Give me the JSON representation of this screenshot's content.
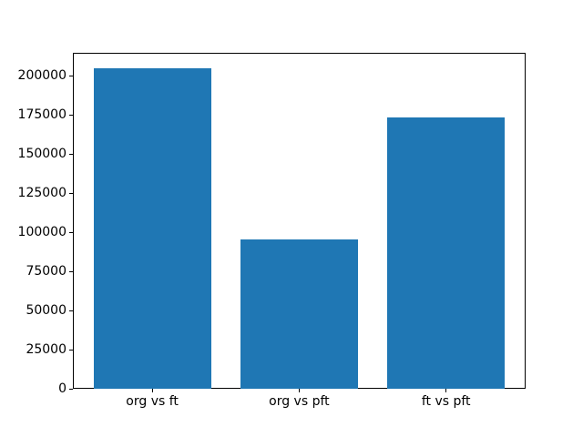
{
  "chart_data": {
    "type": "bar",
    "title": "",
    "xlabel": "",
    "ylabel": "",
    "categories": [
      "org vs ft",
      "org vs pft",
      "ft vs pft"
    ],
    "values": [
      204800,
      95500,
      173400
    ],
    "ylim": [
      0,
      214900
    ],
    "xlim": [
      -0.54,
      2.54
    ],
    "yticks": [
      0,
      25000,
      50000,
      75000,
      100000,
      125000,
      150000,
      175000,
      200000
    ],
    "bar_width": 0.8,
    "grid": false,
    "legend": null,
    "colors": {
      "bar": "#1f77b4",
      "spine": "#000000",
      "tick_text": "#000000",
      "background": "#ffffff"
    }
  }
}
